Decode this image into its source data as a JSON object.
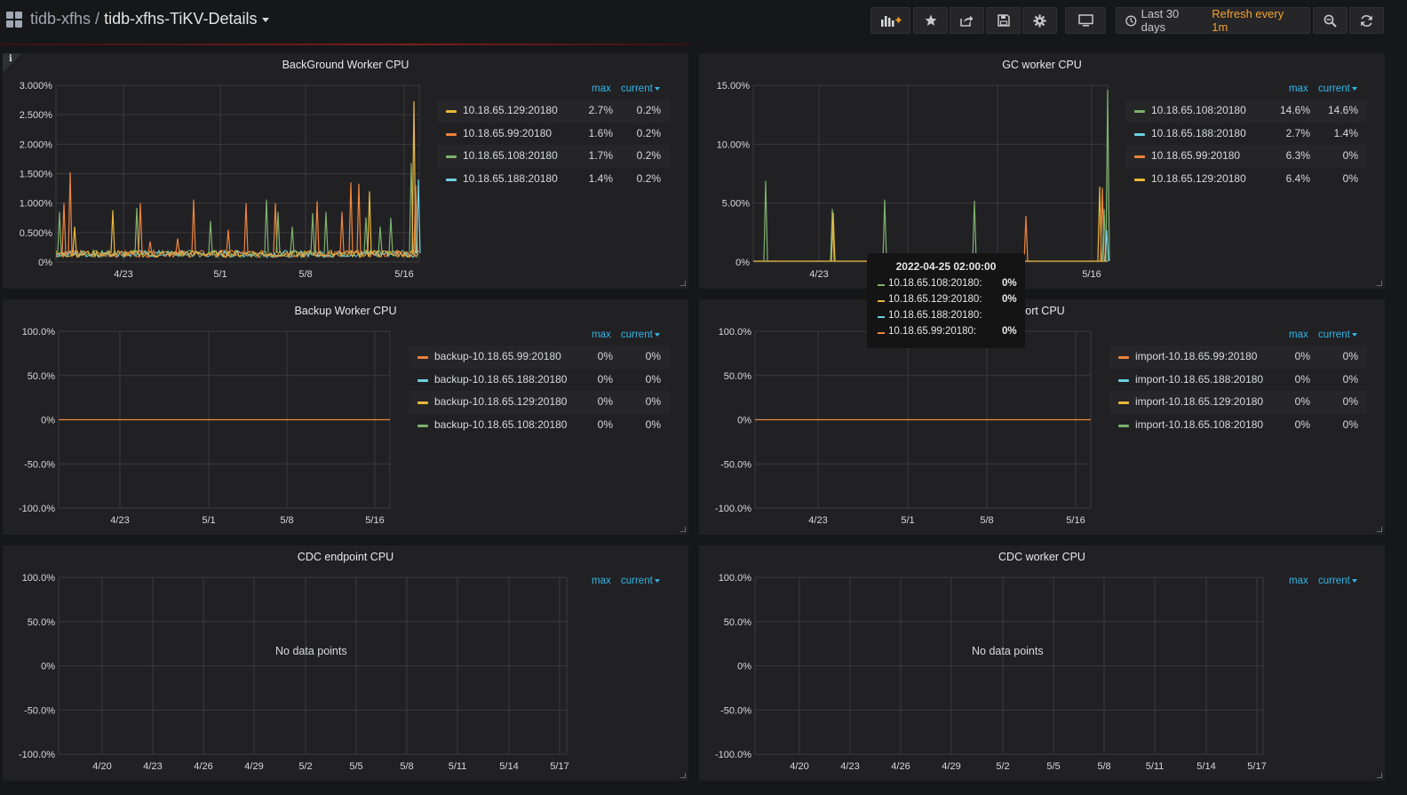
{
  "header": {
    "folder": "tidb-xfhs",
    "separator": "/",
    "dashboard_title": "tidb-xfhs-TiKV-Details",
    "time_range": "Last 30 days",
    "refresh": "Refresh every 1m",
    "icons": [
      "apps-icon",
      "add-panel-icon",
      "star-icon",
      "share-icon",
      "save-icon",
      "settings-icon",
      "tv-mode-icon",
      "clock-icon",
      "zoom-out-icon",
      "refresh-icon"
    ]
  },
  "colors": {
    "yellow": "#eab839",
    "orange": "#ef843c",
    "green": "#7eb26d",
    "blue": "#6ed0e0",
    "legend_header": "#33b5e5",
    "refresh_text": "#f2a22f"
  },
  "legend_headers": {
    "max": "max",
    "current": "current"
  },
  "panels": [
    {
      "title": "BackGround Worker CPU",
      "yticks": [
        "3.000%",
        "2.500%",
        "2.000%",
        "1.500%",
        "1.000%",
        "0.500%",
        "0%"
      ],
      "xticks": [
        "4/23",
        "5/1",
        "5/8",
        "5/16"
      ],
      "legend": [
        {
          "name": "10.18.65.129:20180",
          "max": "2.7%",
          "current": "0.2%",
          "color": "#eab839"
        },
        {
          "name": "10.18.65.99:20180",
          "max": "1.6%",
          "current": "0.2%",
          "color": "#ef843c"
        },
        {
          "name": "10.18.65.108:20180",
          "max": "1.7%",
          "current": "0.2%",
          "color": "#7eb26d"
        },
        {
          "name": "10.18.65.188:20180",
          "max": "1.4%",
          "current": "0.2%",
          "color": "#6ed0e0"
        }
      ],
      "no_data": ""
    },
    {
      "title": "GC worker CPU",
      "yticks": [
        "15.00%",
        "10.00%",
        "5.00%",
        "0%"
      ],
      "xticks": [
        "4/23",
        "5/16"
      ],
      "legend": [
        {
          "name": "10.18.65.108:20180",
          "max": "14.6%",
          "current": "14.6%",
          "color": "#7eb26d"
        },
        {
          "name": "10.18.65.188:20180",
          "max": "2.7%",
          "current": "1.4%",
          "color": "#6ed0e0"
        },
        {
          "name": "10.18.65.99:20180",
          "max": "6.3%",
          "current": "0%",
          "color": "#ef843c"
        },
        {
          "name": "10.18.65.129:20180",
          "max": "6.4%",
          "current": "0%",
          "color": "#eab839"
        }
      ],
      "no_data": ""
    },
    {
      "title": "Backup Worker CPU",
      "yticks": [
        "100.0%",
        "50.0%",
        "0%",
        "-50.0%",
        "-100.0%"
      ],
      "xticks": [
        "4/23",
        "5/1",
        "5/8",
        "5/16"
      ],
      "legend": [
        {
          "name": "backup-10.18.65.99:20180",
          "max": "0%",
          "current": "0%",
          "color": "#ef843c"
        },
        {
          "name": "backup-10.18.65.188:20180",
          "max": "0%",
          "current": "0%",
          "color": "#6ed0e0"
        },
        {
          "name": "backup-10.18.65.129:20180",
          "max": "0%",
          "current": "0%",
          "color": "#eab839"
        },
        {
          "name": "backup-10.18.65.108:20180",
          "max": "0%",
          "current": "0%",
          "color": "#7eb26d"
        }
      ],
      "no_data": ""
    },
    {
      "title": "Import CPU",
      "title_visible": "port CPU",
      "yticks": [
        "100.0%",
        "50.0%",
        "0%",
        "-50.0%",
        "-100.0%"
      ],
      "xticks": [
        "4/23",
        "5/1",
        "5/8",
        "5/16"
      ],
      "legend": [
        {
          "name": "import-10.18.65.99:20180",
          "max": "0%",
          "current": "0%",
          "color": "#ef843c"
        },
        {
          "name": "import-10.18.65.188:20180",
          "max": "0%",
          "current": "0%",
          "color": "#6ed0e0"
        },
        {
          "name": "import-10.18.65.129:20180",
          "max": "0%",
          "current": "0%",
          "color": "#eab839"
        },
        {
          "name": "import-10.18.65.108:20180",
          "max": "0%",
          "current": "0%",
          "color": "#7eb26d"
        }
      ],
      "no_data": ""
    },
    {
      "title": "CDC endpoint CPU",
      "yticks": [
        "100.0%",
        "50.0%",
        "0%",
        "-50.0%",
        "-100.0%"
      ],
      "xticks": [
        "4/20",
        "4/23",
        "4/26",
        "4/29",
        "5/2",
        "5/5",
        "5/8",
        "5/11",
        "5/14",
        "5/17"
      ],
      "legend": [],
      "no_data": "No data points"
    },
    {
      "title": "CDC worker CPU",
      "yticks": [
        "100.0%",
        "50.0%",
        "0%",
        "-50.0%",
        "-100.0%"
      ],
      "xticks": [
        "4/20",
        "4/23",
        "4/26",
        "4/29",
        "5/2",
        "5/5",
        "5/8",
        "5/11",
        "5/14",
        "5/17"
      ],
      "legend": [],
      "no_data": "No data points"
    }
  ],
  "tooltip": {
    "time": "2022-04-25 02:00:00",
    "rows": [
      {
        "name": "10.18.65.108:20180:",
        "value": "0%",
        "color": "#7eb26d"
      },
      {
        "name": "10.18.65.129:20180:",
        "value": "0%",
        "color": "#eab839"
      },
      {
        "name": "10.18.65.188:20180:",
        "value": "",
        "color": "#6ed0e0"
      },
      {
        "name": "10.18.65.99:20180:",
        "value": "0%",
        "color": "#ef843c"
      }
    ]
  },
  "chart_data": [
    {
      "type": "line",
      "title": "BackGround Worker CPU",
      "ylim": [
        0,
        3
      ],
      "y_unit": "%",
      "x": [
        "4/23",
        "5/1",
        "5/8",
        "5/16"
      ],
      "series": [
        {
          "name": "10.18.65.129:20180",
          "max": 2.7,
          "current": 0.2
        },
        {
          "name": "10.18.65.99:20180",
          "max": 1.6,
          "current": 0.2
        },
        {
          "name": "10.18.65.108:20180",
          "max": 1.7,
          "current": 0.2
        },
        {
          "name": "10.18.65.188:20180",
          "max": 1.4,
          "current": 0.2
        }
      ]
    },
    {
      "type": "line",
      "title": "GC worker CPU",
      "ylim": [
        0,
        15
      ],
      "y_unit": "%",
      "series": [
        {
          "name": "10.18.65.108:20180",
          "max": 14.6,
          "current": 14.6
        },
        {
          "name": "10.18.65.188:20180",
          "max": 2.7,
          "current": 1.4
        },
        {
          "name": "10.18.65.99:20180",
          "max": 6.3,
          "current": 0
        },
        {
          "name": "10.18.65.129:20180",
          "max": 6.4,
          "current": 0
        }
      ]
    },
    {
      "type": "line",
      "title": "Backup Worker CPU",
      "ylim": [
        -100,
        100
      ],
      "y_unit": "%",
      "series_values": "all 0"
    },
    {
      "type": "line",
      "title": "Import CPU",
      "ylim": [
        -100,
        100
      ],
      "y_unit": "%",
      "series_values": "all 0"
    },
    {
      "type": "line",
      "title": "CDC endpoint CPU",
      "ylim": [
        -100,
        100
      ],
      "y_unit": "%",
      "series_values": "none"
    },
    {
      "type": "line",
      "title": "CDC worker CPU",
      "ylim": [
        -100,
        100
      ],
      "y_unit": "%",
      "series_values": "none"
    }
  ]
}
